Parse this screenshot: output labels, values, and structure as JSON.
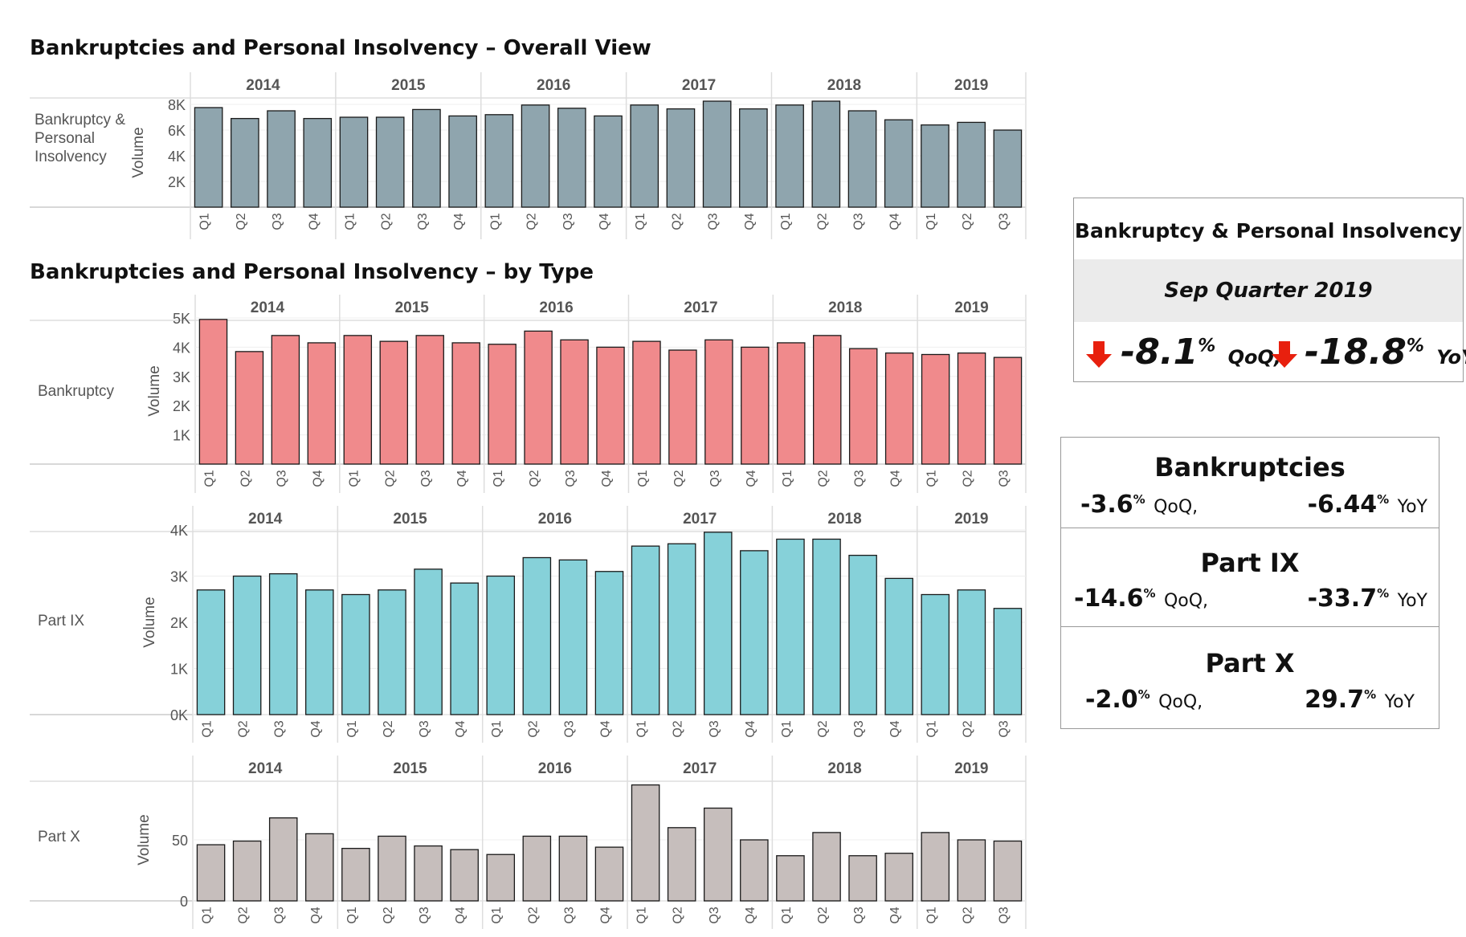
{
  "titles": {
    "overall": "Bankruptcies and Personal Insolvency – Overall View",
    "by_type": "Bankruptcies and Personal Insolvency – by Type"
  },
  "colors": {
    "overall": "#8fa5ae",
    "bankruptcy": "#f08a8c",
    "part_ix": "#86d1d9",
    "part_x": "#c6bebc",
    "arrow": "#e8200e",
    "band": "#ebebeb"
  },
  "chart_data": [
    {
      "type": "bar",
      "row_label": [
        "Bankruptcy &",
        "Personal",
        "Insolvency"
      ],
      "ylabel": "Volume",
      "years": [
        "2014",
        "2015",
        "2016",
        "2017",
        "2018",
        "2019"
      ],
      "quarters": [
        "Q1",
        "Q2",
        "Q3",
        "Q4",
        "Q1",
        "Q2",
        "Q3",
        "Q4",
        "Q1",
        "Q2",
        "Q3",
        "Q4",
        "Q1",
        "Q2",
        "Q3",
        "Q4",
        "Q1",
        "Q2",
        "Q3",
        "Q4",
        "Q1",
        "Q2",
        "Q3"
      ],
      "ylim": [
        0,
        8500
      ],
      "yticks": [
        2000,
        4000,
        6000,
        8000
      ],
      "ytick_labels": [
        "2K",
        "4K",
        "6K",
        "8K"
      ],
      "values": [
        7750,
        6900,
        7500,
        6900,
        7000,
        7000,
        7600,
        7100,
        7200,
        7950,
        7700,
        7100,
        7950,
        7650,
        8250,
        7650,
        7950,
        8250,
        7500,
        6800,
        6400,
        6600,
        6000
      ],
      "color_key": "overall"
    },
    {
      "type": "bar",
      "row_label": [
        "Bankruptcy"
      ],
      "ylabel": "Volume",
      "years": [
        "2014",
        "2015",
        "2016",
        "2017",
        "2018",
        "2019"
      ],
      "quarters": [
        "Q1",
        "Q2",
        "Q3",
        "Q4",
        "Q1",
        "Q2",
        "Q3",
        "Q4",
        "Q1",
        "Q2",
        "Q3",
        "Q4",
        "Q1",
        "Q2",
        "Q3",
        "Q4",
        "Q1",
        "Q2",
        "Q3",
        "Q4",
        "Q1",
        "Q2",
        "Q3"
      ],
      "ylim": [
        0,
        5000
      ],
      "yticks": [
        1000,
        2000,
        3000,
        4000,
        5000
      ],
      "ytick_labels": [
        "1K",
        "2K",
        "3K",
        "4K",
        "5K"
      ],
      "values": [
        4950,
        3850,
        4400,
        4150,
        4400,
        4200,
        4400,
        4150,
        4100,
        4550,
        4250,
        4000,
        4200,
        3900,
        4250,
        4000,
        4150,
        4400,
        3950,
        3800,
        3750,
        3800,
        3650
      ],
      "color_key": "bankruptcy"
    },
    {
      "type": "bar",
      "row_label": [
        "Part IX"
      ],
      "ylabel": "Volume",
      "years": [
        "2014",
        "2015",
        "2016",
        "2017",
        "2018",
        "2019"
      ],
      "quarters": [
        "Q1",
        "Q2",
        "Q3",
        "Q4",
        "Q1",
        "Q2",
        "Q3",
        "Q4",
        "Q1",
        "Q2",
        "Q3",
        "Q4",
        "Q1",
        "Q2",
        "Q3",
        "Q4",
        "Q1",
        "Q2",
        "Q3",
        "Q4",
        "Q1",
        "Q2",
        "Q3"
      ],
      "ylim": [
        0,
        4000
      ],
      "yticks": [
        0,
        1000,
        2000,
        3000,
        4000
      ],
      "ytick_labels": [
        "0K",
        "1K",
        "2K",
        "3K",
        "4K"
      ],
      "values": [
        2700,
        3000,
        3050,
        2700,
        2600,
        2700,
        3150,
        2850,
        3000,
        3400,
        3350,
        3100,
        3650,
        3700,
        3950,
        3550,
        3800,
        3800,
        3450,
        2950,
        2600,
        2700,
        2300
      ],
      "color_key": "part_ix"
    },
    {
      "type": "bar",
      "row_label": [
        "Part X"
      ],
      "ylabel": "Volume",
      "years": [
        "2014",
        "2015",
        "2016",
        "2017",
        "2018",
        "2019"
      ],
      "quarters": [
        "Q1",
        "Q2",
        "Q3",
        "Q4",
        "Q1",
        "Q2",
        "Q3",
        "Q4",
        "Q1",
        "Q2",
        "Q3",
        "Q4",
        "Q1",
        "Q2",
        "Q3",
        "Q4",
        "Q1",
        "Q2",
        "Q3",
        "Q4",
        "Q1",
        "Q2",
        "Q3"
      ],
      "ylim": [
        0,
        100
      ],
      "yticks": [
        0,
        50
      ],
      "ytick_labels": [
        "0",
        "50"
      ],
      "values": [
        46,
        49,
        68,
        55,
        43,
        53,
        45,
        42,
        38,
        53,
        53,
        44,
        95,
        60,
        76,
        50,
        37,
        56,
        37,
        39,
        56,
        50,
        49
      ],
      "color_key": "part_x"
    }
  ],
  "summary": {
    "title": "Bankruptcy & Personal Insolvency",
    "period": "Sep Quarter 2019",
    "qoq_value": "-8.1",
    "qoq_unit": "%",
    "qoq_tag": "QoQ,",
    "yoy_value": "-18.8",
    "yoy_unit": "%",
    "yoy_tag": "YoY"
  },
  "breakdown": [
    {
      "title": "Bankruptcies",
      "qoq": "-3.6",
      "qoq_unit": "%",
      "qoq_tag": "QoQ,",
      "yoy": "-6.44",
      "yoy_unit": "%",
      "yoy_tag": "YoY"
    },
    {
      "title": "Part IX",
      "qoq": "-14.6",
      "qoq_unit": "%",
      "qoq_tag": "QoQ,",
      "yoy": "-33.7",
      "yoy_unit": "%",
      "yoy_tag": "YoY"
    },
    {
      "title": "Part X",
      "qoq": "-2.0",
      "qoq_unit": "%",
      "qoq_tag": "QoQ,",
      "yoy": "29.7",
      "yoy_unit": "%",
      "yoy_tag": "YoY"
    }
  ]
}
